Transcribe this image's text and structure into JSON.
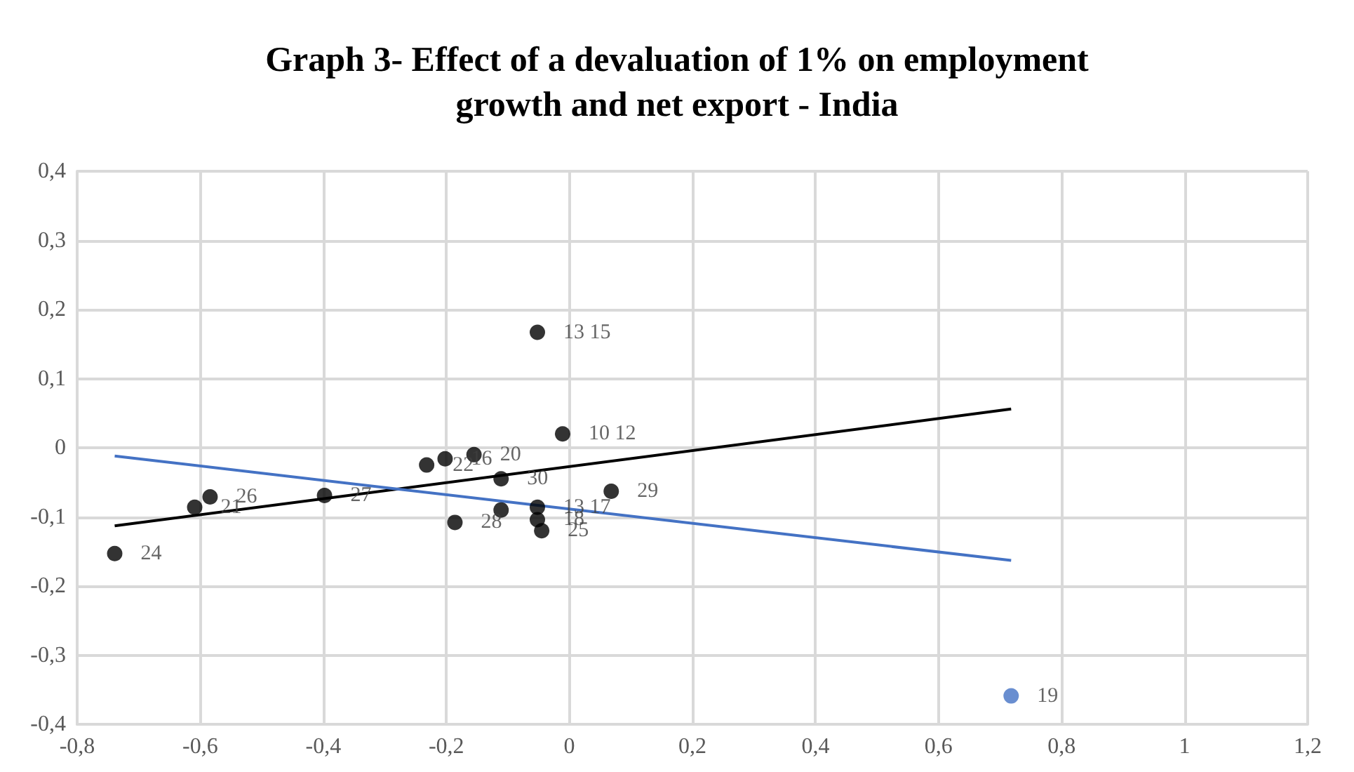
{
  "chart_data": {
    "type": "scatter",
    "title": "Graph 3- Effect of a devaluation of 1% on employment\ngrowth and net export - India",
    "xlim": [
      -0.8,
      1.2
    ],
    "xticks": [
      {
        "value": -0.8,
        "label": "-0,8"
      },
      {
        "value": -0.6,
        "label": "-0,6"
      },
      {
        "value": -0.4,
        "label": "-0,4"
      },
      {
        "value": -0.2,
        "label": "-0,2"
      },
      0,
      {
        "value": 0.2,
        "label": "0,2"
      },
      {
        "value": 0.4,
        "label": "0,4"
      },
      {
        "value": 0.6,
        "label": "0,6"
      },
      {
        "value": 0.8,
        "label": "0,8"
      },
      1,
      {
        "value": 1.2,
        "label": "1,2"
      }
    ],
    "ylim": [
      -0.4,
      0.4
    ],
    "yticks": [
      {
        "value": -0.4,
        "label": "-0,4"
      },
      {
        "value": -0.3,
        "label": "-0,3"
      },
      {
        "value": -0.2,
        "label": "-0,2"
      },
      {
        "value": -0.1,
        "label": "-0,1"
      },
      0,
      {
        "value": 0.1,
        "label": "0,1"
      },
      {
        "value": 0.2,
        "label": "0,2"
      },
      {
        "value": 0.3,
        "label": "0,3"
      },
      {
        "value": 0.4,
        "label": "0,4"
      }
    ],
    "grid": true,
    "marker": "circle",
    "annotations": [
      {
        "text": "24",
        "x": -0.739,
        "y": -0.153
      },
      {
        "text": "21",
        "x": -0.609,
        "y": -0.086
      },
      {
        "text": "26",
        "x": -0.584,
        "y": -0.071
      },
      {
        "text": "27",
        "x": -0.398,
        "y": -0.069
      },
      {
        "text": "22",
        "x": -0.232,
        "y": -0.025
      },
      {
        "text": "16",
        "x": -0.202,
        "y": -0.016
      },
      {
        "text": "20",
        "x": -0.155,
        "y": -0.01
      },
      {
        "text": "30",
        "x": -0.111,
        "y": -0.045
      },
      {
        "text": "28",
        "x": -0.186,
        "y": -0.108
      },
      {
        "text": "13 17",
        "x": -0.052,
        "y": -0.086
      },
      {
        "text": "18",
        "x": -0.052,
        "y": -0.104
      },
      {
        "text": "25",
        "x": -0.045,
        "y": -0.12
      },
      {
        "text": "13 15",
        "x": -0.052,
        "y": 0.167
      },
      {
        "text": "10 12",
        "x": -0.011,
        "y": 0.02
      },
      {
        "text": "29",
        "x": 0.068,
        "y": -0.063
      },
      {
        "text": "19",
        "x": 0.718,
        "y": -0.359
      }
    ],
    "series": [
      {
        "color": "#000000",
        "x": [
          -0.739,
          -0.609,
          -0.584,
          -0.398,
          -0.232,
          -0.202,
          -0.155,
          -0.111,
          -0.186,
          -0.111,
          -0.052,
          -0.052,
          -0.045,
          -0.052,
          -0.011,
          0.068
        ],
        "values": [
          -0.153,
          -0.086,
          -0.071,
          -0.069,
          -0.025,
          -0.016,
          -0.01,
          -0.045,
          -0.108,
          -0.09,
          -0.086,
          -0.104,
          -0.12,
          0.167,
          0.02,
          -0.063
        ]
      },
      {
        "color": "#4472c4",
        "x": [
          0.718
        ],
        "values": [
          -0.359
        ]
      },
      {
        "type": "line",
        "marker": "none",
        "color": "#000000",
        "x": [
          -0.739,
          0.718
        ],
        "values": [
          -0.113,
          0.056
        ]
      },
      {
        "type": "line",
        "marker": "none",
        "color": "#4472c4",
        "x": [
          -0.739,
          0.718
        ],
        "values": [
          -0.012,
          -0.163
        ]
      }
    ]
  }
}
